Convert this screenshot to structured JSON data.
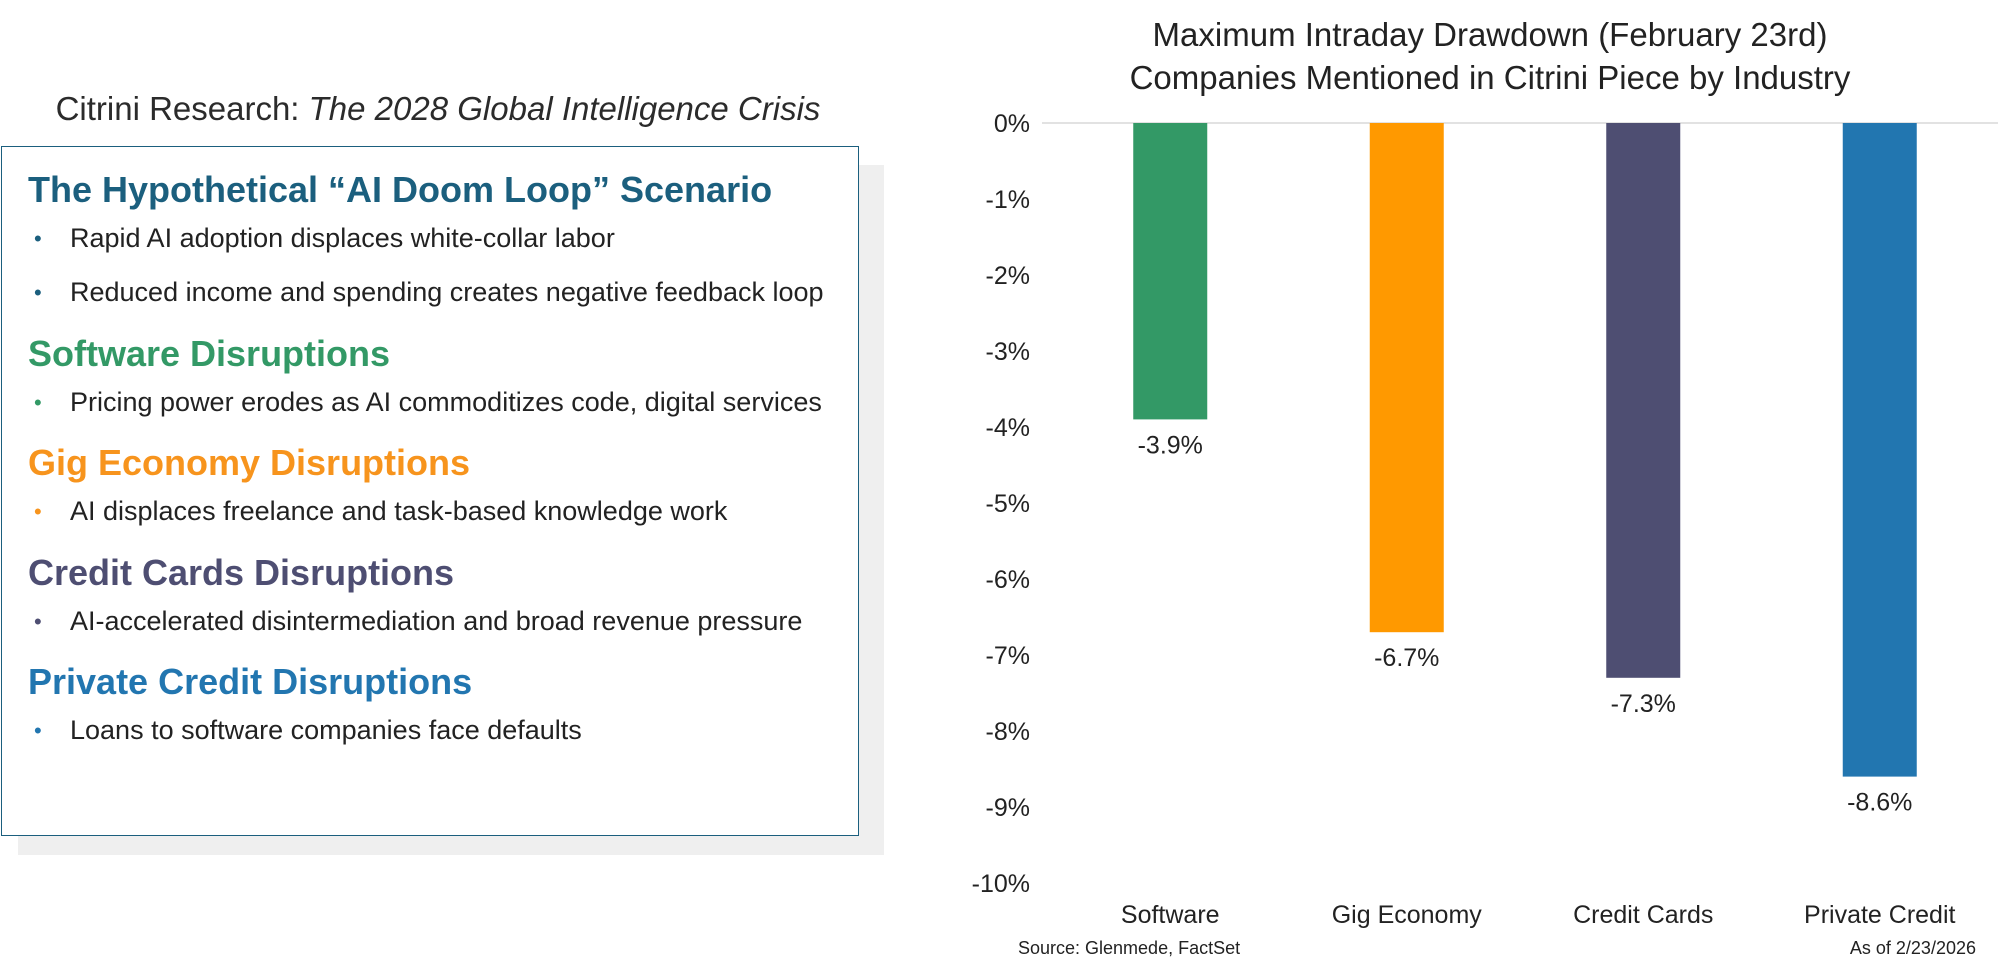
{
  "panel": {
    "title_prefix": "Citrini Research: ",
    "title_italic": "The 2028 Global Intelligence Crisis",
    "sections": [
      {
        "heading": "The Hypothetical “AI Doom Loop” Scenario",
        "color": "#1b5f7e",
        "bullets": [
          "Rapid AI adoption displaces white-collar labor",
          "Reduced income and spending creates negative feedback loop"
        ]
      },
      {
        "heading": "Software Disruptions",
        "color": "#339966",
        "bullets": [
          "Pricing power erodes as AI commoditizes code, digital services"
        ]
      },
      {
        "heading": "Gig Economy Disruptions",
        "color": "#f7941d",
        "bullets": [
          "AI displaces freelance and task-based knowledge work"
        ]
      },
      {
        "heading": "Credit Cards Disruptions",
        "color": "#4e4e72",
        "bullets": [
          "AI-accelerated disintermediation and broad revenue pressure"
        ]
      },
      {
        "heading": "Private Credit Disruptions",
        "color": "#2276b0",
        "bullets": [
          "Loans to software companies face defaults"
        ]
      }
    ]
  },
  "chart_data": {
    "type": "bar",
    "title": "Maximum Intraday Drawdown (February 23rd)",
    "subtitle": "Companies Mentioned in Citrini Piece by Industry",
    "categories": [
      "Software",
      "Gig Economy",
      "Credit Cards",
      "Private Credit"
    ],
    "values": [
      -3.9,
      -6.7,
      -7.3,
      -8.6
    ],
    "data_labels": [
      "-3.9%",
      "-6.7%",
      "-7.3%",
      "-8.6%"
    ],
    "colors": [
      "#339966",
      "#ff9900",
      "#4e4e72",
      "#2276b0"
    ],
    "ylim": [
      -10,
      0
    ],
    "yticks": [
      0,
      -1,
      -2,
      -3,
      -4,
      -5,
      -6,
      -7,
      -8,
      -9,
      -10
    ],
    "ytick_labels": [
      "0%",
      "-1%",
      "-2%",
      "-3%",
      "-4%",
      "-5%",
      "-6%",
      "-7%",
      "-8%",
      "-9%",
      "-10%"
    ],
    "xlabel": "",
    "ylabel": "",
    "grid": false
  },
  "footer": {
    "source": "Source: Glenmede, FactSet",
    "as_of": "As of 2/23/2026"
  }
}
